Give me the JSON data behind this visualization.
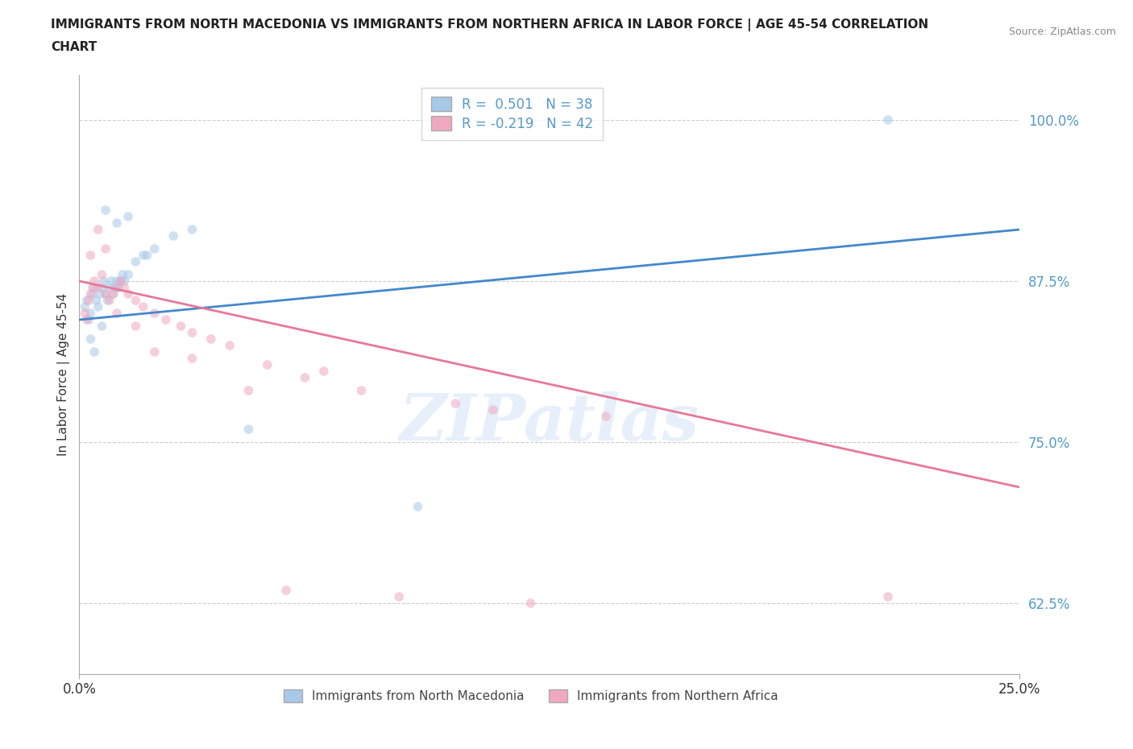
{
  "title_line1": "IMMIGRANTS FROM NORTH MACEDONIA VS IMMIGRANTS FROM NORTHERN AFRICA IN LABOR FORCE | AGE 45-54 CORRELATION",
  "title_line2": "CHART",
  "source": "Source: ZipAtlas.com",
  "ylabel": "In Labor Force | Age 45-54",
  "xlim": [
    0.0,
    25.0
  ],
  "ylim": [
    57.0,
    103.5
  ],
  "legend_entries": [
    {
      "label": "Immigrants from North Macedonia",
      "color": "#a8c8e8",
      "R": "0.501",
      "N": "38"
    },
    {
      "label": "Immigrants from Northern Africa",
      "color": "#f0a8c0",
      "R": "-0.219",
      "N": "42"
    }
  ],
  "blue_scatter_x": [
    0.15,
    0.2,
    0.25,
    0.3,
    0.35,
    0.4,
    0.45,
    0.5,
    0.55,
    0.6,
    0.65,
    0.7,
    0.75,
    0.8,
    0.85,
    0.9,
    0.95,
    1.0,
    1.05,
    1.1,
    1.15,
    1.2,
    1.3,
    1.5,
    1.7,
    2.0,
    2.5,
    3.0,
    0.3,
    0.4,
    0.6,
    0.7,
    1.0,
    1.3,
    1.8,
    4.5,
    9.0,
    21.5
  ],
  "blue_scatter_y": [
    85.5,
    86.0,
    84.5,
    85.0,
    86.5,
    87.0,
    86.0,
    85.5,
    86.5,
    87.0,
    87.5,
    86.5,
    86.0,
    87.0,
    87.5,
    86.5,
    87.0,
    87.5,
    87.0,
    87.5,
    88.0,
    87.5,
    88.0,
    89.0,
    89.5,
    90.0,
    91.0,
    91.5,
    83.0,
    82.0,
    84.0,
    93.0,
    92.0,
    92.5,
    89.5,
    76.0,
    70.0,
    100.0
  ],
  "pink_scatter_x": [
    0.15,
    0.2,
    0.25,
    0.3,
    0.35,
    0.4,
    0.5,
    0.6,
    0.7,
    0.8,
    0.9,
    1.0,
    1.1,
    1.2,
    1.3,
    1.5,
    1.7,
    2.0,
    2.3,
    2.7,
    3.0,
    3.5,
    4.0,
    5.0,
    6.0,
    6.5,
    7.5,
    10.0,
    11.0,
    14.0,
    0.3,
    0.5,
    0.7,
    1.0,
    1.5,
    2.0,
    3.0,
    4.5,
    5.5,
    8.5,
    12.0,
    21.5
  ],
  "pink_scatter_y": [
    85.0,
    84.5,
    86.0,
    86.5,
    87.0,
    87.5,
    87.0,
    88.0,
    86.5,
    86.0,
    86.5,
    87.0,
    87.5,
    87.0,
    86.5,
    86.0,
    85.5,
    85.0,
    84.5,
    84.0,
    83.5,
    83.0,
    82.5,
    81.0,
    80.0,
    80.5,
    79.0,
    78.0,
    77.5,
    77.0,
    89.5,
    91.5,
    90.0,
    85.0,
    84.0,
    82.0,
    81.5,
    79.0,
    63.5,
    63.0,
    62.5,
    63.0
  ],
  "blue_line_x": [
    0.0,
    25.0
  ],
  "blue_line_y": [
    84.5,
    91.5
  ],
  "pink_line_x": [
    0.0,
    25.0
  ],
  "pink_line_y": [
    87.5,
    71.5
  ],
  "watermark": "ZIPatlas",
  "background_color": "#ffffff",
  "scatter_size": 70,
  "scatter_alpha": 0.55,
  "blue_color": "#a8c8e8",
  "pink_color": "#f0a8c0",
  "blue_line_color": "#4488cc",
  "pink_line_color": "#e87898",
  "grid_color": "#cccccc",
  "grid_style": "--",
  "ytick_positions": [
    62.5,
    75.0,
    87.5,
    100.0
  ],
  "xtick_positions": [
    0.0,
    25.0
  ],
  "ytick_color": "#5599cc",
  "xtick_color": "#333333"
}
